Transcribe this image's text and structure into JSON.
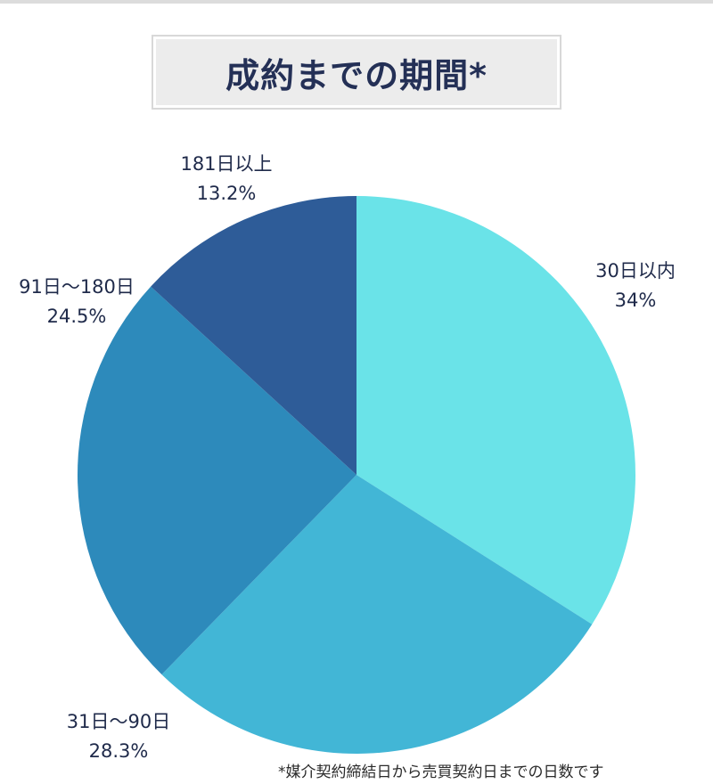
{
  "chart_data": {
    "type": "pie",
    "title": "成約までの期間*",
    "start_angle": "12 o'clock, clockwise",
    "slices": [
      {
        "name": "30日以内",
        "value": 34,
        "value_label": "34%",
        "color": "#6ae3e8"
      },
      {
        "name": "31日〜90日",
        "value": 28.3,
        "value_label": "28.3%",
        "color": "#42b6d6"
      },
      {
        "name": "91日〜180日",
        "value": 24.5,
        "value_label": "24.5%",
        "color": "#2d8abb"
      },
      {
        "name": "181日以上",
        "value": 13.2,
        "value_label": "13.2%",
        "color": "#2e5c98"
      }
    ],
    "footnote": "*媒介契約締結日から売買契約日までの日数です"
  }
}
